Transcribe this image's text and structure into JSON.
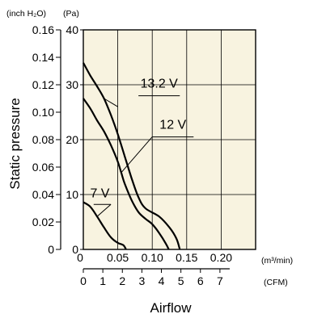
{
  "chart_data": {
    "type": "line",
    "xlabel": "Airflow",
    "ylabel": "Static pressure",
    "units": {
      "inch": "(inch H₂O)",
      "pa": "(Pa)",
      "m3": "(m³/min)",
      "cfm": "(CFM)"
    },
    "xlim": [
      0,
      0.25
    ],
    "ylim": [
      0,
      40
    ],
    "y_ticks_pa": [
      "0",
      "10",
      "20",
      "30",
      "40"
    ],
    "y_ticks_inch": [
      "0",
      "0.02",
      "0.04",
      "0.06",
      "0.08",
      "0.10",
      "0.12",
      "0.14",
      "0.16"
    ],
    "x_ticks_m3": [
      "0.05",
      "0.10",
      "0.15",
      "0.20"
    ],
    "x_origin_m3": "0",
    "x_ticks_cfm": [
      "0",
      "1",
      "2",
      "3",
      "4",
      "5",
      "6",
      "7"
    ],
    "grid": true,
    "series": [
      {
        "name": "13.2 V",
        "points": [
          [
            0,
            34
          ],
          [
            0.01,
            31.7
          ],
          [
            0.02,
            29.7
          ],
          [
            0.03,
            27.5
          ],
          [
            0.04,
            24.5
          ],
          [
            0.05,
            21
          ],
          [
            0.06,
            17
          ],
          [
            0.07,
            13
          ],
          [
            0.08,
            9.5
          ],
          [
            0.09,
            7.5
          ],
          [
            0.11,
            6
          ],
          [
            0.125,
            4
          ],
          [
            0.135,
            2
          ],
          [
            0.14,
            0
          ]
        ]
      },
      {
        "name": "12 V",
        "points": [
          [
            0,
            27.5
          ],
          [
            0.01,
            25.7
          ],
          [
            0.02,
            23.5
          ],
          [
            0.03,
            21.5
          ],
          [
            0.04,
            19
          ],
          [
            0.05,
            16
          ],
          [
            0.055,
            14
          ],
          [
            0.06,
            12
          ],
          [
            0.07,
            9
          ],
          [
            0.08,
            6.8
          ],
          [
            0.09,
            5.6
          ],
          [
            0.1,
            4.6
          ],
          [
            0.11,
            3
          ],
          [
            0.12,
            1
          ],
          [
            0.124,
            0
          ]
        ]
      },
      {
        "name": "7 V",
        "points": [
          [
            0,
            8.6
          ],
          [
            0.01,
            7.8
          ],
          [
            0.02,
            6
          ],
          [
            0.03,
            4
          ],
          [
            0.04,
            2.2
          ],
          [
            0.05,
            1.2
          ],
          [
            0.058,
            0.8
          ],
          [
            0.062,
            0
          ]
        ]
      }
    ]
  }
}
